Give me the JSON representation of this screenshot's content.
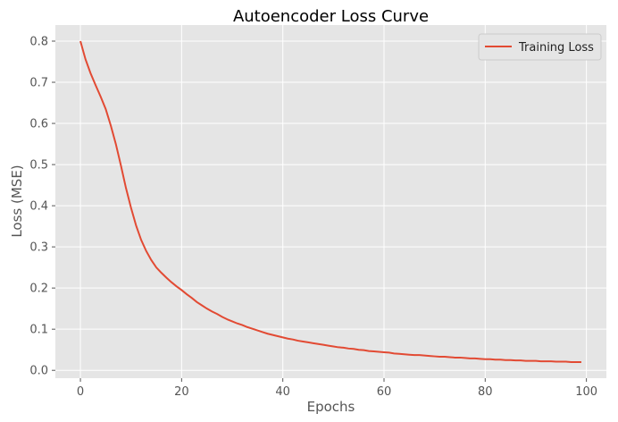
{
  "chart_data": {
    "type": "line",
    "title": "Autoencoder Loss Curve",
    "xlabel": "Epochs",
    "ylabel": "Loss (MSE)",
    "xlim": [
      -4.95,
      103.95
    ],
    "ylim": [
      -0.0191,
      0.8391
    ],
    "xticks": [
      0,
      20,
      40,
      60,
      80,
      100
    ],
    "yticks": [
      0.0,
      0.1,
      0.2,
      0.3,
      0.4,
      0.5,
      0.6,
      0.7,
      0.8
    ],
    "xtick_labels": [
      "0",
      "20",
      "40",
      "60",
      "80",
      "100"
    ],
    "ytick_labels": [
      "0.0",
      "0.1",
      "0.2",
      "0.3",
      "0.4",
      "0.5",
      "0.6",
      "0.7",
      "0.8"
    ],
    "grid": true,
    "legend_position": "top-right",
    "colors": {
      "line": "#E24A33",
      "plot_background": "#E5E5E5",
      "grid": "#FFFFFF"
    },
    "series": [
      {
        "name": "Training Loss",
        "x": [
          0,
          1,
          2,
          3,
          4,
          5,
          6,
          7,
          8,
          9,
          10,
          11,
          12,
          13,
          14,
          15,
          16,
          17,
          18,
          19,
          20,
          21,
          22,
          23,
          24,
          25,
          26,
          27,
          28,
          29,
          30,
          31,
          32,
          33,
          34,
          35,
          36,
          37,
          38,
          39,
          40,
          41,
          42,
          43,
          44,
          45,
          46,
          47,
          48,
          49,
          50,
          51,
          52,
          53,
          54,
          55,
          56,
          57,
          58,
          59,
          60,
          61,
          62,
          63,
          64,
          65,
          66,
          67,
          68,
          69,
          70,
          71,
          72,
          73,
          74,
          75,
          76,
          77,
          78,
          79,
          80,
          81,
          82,
          83,
          84,
          85,
          86,
          87,
          88,
          89,
          90,
          91,
          92,
          93,
          94,
          95,
          96,
          97,
          98,
          99
        ],
        "y": [
          0.8,
          0.756,
          0.722,
          0.693,
          0.665,
          0.635,
          0.595,
          0.55,
          0.498,
          0.443,
          0.395,
          0.352,
          0.317,
          0.29,
          0.268,
          0.25,
          0.237,
          0.225,
          0.214,
          0.204,
          0.195,
          0.185,
          0.176,
          0.166,
          0.158,
          0.15,
          0.143,
          0.137,
          0.13,
          0.124,
          0.119,
          0.114,
          0.11,
          0.105,
          0.101,
          0.097,
          0.093,
          0.089,
          0.086,
          0.083,
          0.08,
          0.077,
          0.075,
          0.072,
          0.07,
          0.068,
          0.066,
          0.064,
          0.062,
          0.06,
          0.058,
          0.056,
          0.055,
          0.053,
          0.052,
          0.05,
          0.049,
          0.047,
          0.046,
          0.045,
          0.044,
          0.043,
          0.041,
          0.04,
          0.039,
          0.038,
          0.037,
          0.037,
          0.036,
          0.035,
          0.034,
          0.033,
          0.033,
          0.032,
          0.031,
          0.031,
          0.03,
          0.029,
          0.029,
          0.028,
          0.027,
          0.027,
          0.026,
          0.026,
          0.025,
          0.025,
          0.024,
          0.024,
          0.023,
          0.023,
          0.023,
          0.022,
          0.022,
          0.022,
          0.021,
          0.021,
          0.021,
          0.02,
          0.02,
          0.02
        ]
      }
    ]
  }
}
